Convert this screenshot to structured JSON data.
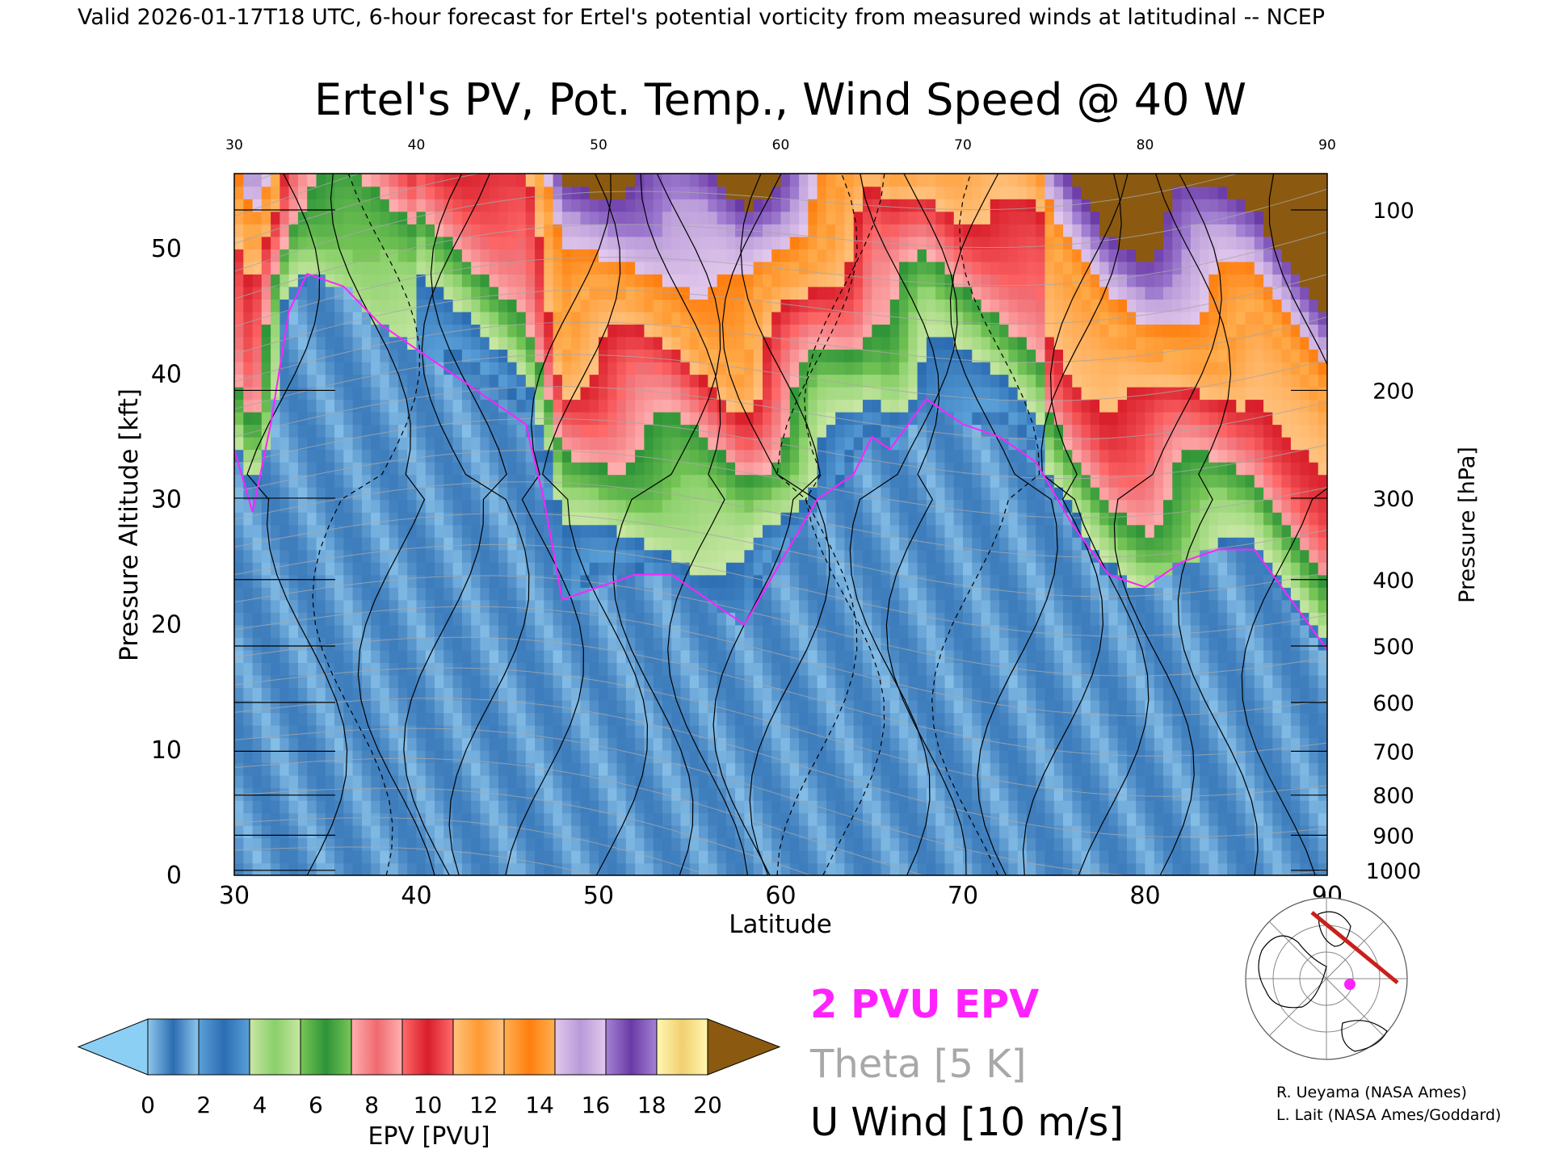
{
  "header": {
    "top_caption": "Valid 2026-01-17T18 UTC, 6-hour forecast for Ertel's potential vorticity from measured winds at latitudinal -- NCEP"
  },
  "chart_data": {
    "type": "heatmap",
    "title": "Ertel's PV, Pot. Temp., Wind Speed @ 40 W",
    "xlabel": "Latitude",
    "ylabel_left": "Pressure Altitude [kft]",
    "ylabel_right": "Pressure [hPa]",
    "xlim": [
      30,
      90
    ],
    "ylim": [
      0,
      56
    ],
    "x_ticks": [
      30,
      40,
      50,
      60,
      70,
      80,
      90
    ],
    "x_ticks_top": [
      30,
      40,
      50,
      60,
      70,
      80,
      90
    ],
    "y_ticks": [
      0,
      10,
      20,
      30,
      40,
      50
    ],
    "pressure_ticks": [
      {
        "hpa": "100",
        "kft": 53.1
      },
      {
        "hpa": "200",
        "kft": 38.7
      },
      {
        "hpa": "300",
        "kft": 30.1
      },
      {
        "hpa": "400",
        "kft": 23.6
      },
      {
        "hpa": "500",
        "kft": 18.3
      },
      {
        "hpa": "600",
        "kft": 13.8
      },
      {
        "hpa": "700",
        "kft": 9.9
      },
      {
        "hpa": "800",
        "kft": 6.4
      },
      {
        "hpa": "900",
        "kft": 3.2
      },
      {
        "hpa": "1000",
        "kft": 0.4
      }
    ],
    "colorbar": {
      "label": "EPV [PVU]",
      "ticks": [
        "0",
        "2",
        "4",
        "6",
        "8",
        "10",
        "12",
        "14",
        "16",
        "18",
        "20"
      ],
      "under_color": "#8ccff5",
      "over_color": "#8b5a10",
      "bins": [
        [
          "#8ec6ec",
          "#2c6db2"
        ],
        [
          "#5aa0d8",
          "#2c6db2"
        ],
        [
          "#c9e7a4",
          "#8ad06a"
        ],
        [
          "#78c657",
          "#2e9437"
        ],
        [
          "#ffb0b0",
          "#f06a70"
        ],
        [
          "#ff6a6a",
          "#d81e2a"
        ],
        [
          "#ffc380",
          "#ff9a32"
        ],
        [
          "#ffb050",
          "#ff7f10"
        ],
        [
          "#e2c8ec",
          "#b89ad8"
        ],
        [
          "#a482d4",
          "#6a3aa6"
        ],
        [
          "#fff7b0",
          "#f0d070"
        ]
      ]
    },
    "fields": {
      "epv_units": "PVU",
      "tropopause_contour_pvu": 2,
      "theta_interval_K": 5,
      "u_wind_interval_ms": 10
    },
    "tropopause_2pvu_kft": [
      {
        "lat": 30,
        "kft": 34
      },
      {
        "lat": 31,
        "kft": 29
      },
      {
        "lat": 32,
        "kft": 36
      },
      {
        "lat": 33,
        "kft": 45
      },
      {
        "lat": 34,
        "kft": 48
      },
      {
        "lat": 36,
        "kft": 47
      },
      {
        "lat": 38,
        "kft": 44
      },
      {
        "lat": 40,
        "kft": 42
      },
      {
        "lat": 42,
        "kft": 40
      },
      {
        "lat": 44,
        "kft": 38
      },
      {
        "lat": 46,
        "kft": 36
      },
      {
        "lat": 47,
        "kft": 30
      },
      {
        "lat": 48,
        "kft": 22
      },
      {
        "lat": 50,
        "kft": 23
      },
      {
        "lat": 52,
        "kft": 24
      },
      {
        "lat": 54,
        "kft": 24
      },
      {
        "lat": 56,
        "kft": 22
      },
      {
        "lat": 58,
        "kft": 20
      },
      {
        "lat": 60,
        "kft": 25
      },
      {
        "lat": 62,
        "kft": 30
      },
      {
        "lat": 64,
        "kft": 32
      },
      {
        "lat": 65,
        "kft": 35
      },
      {
        "lat": 66,
        "kft": 34
      },
      {
        "lat": 68,
        "kft": 38
      },
      {
        "lat": 70,
        "kft": 36
      },
      {
        "lat": 72,
        "kft": 35
      },
      {
        "lat": 74,
        "kft": 33
      },
      {
        "lat": 76,
        "kft": 28
      },
      {
        "lat": 78,
        "kft": 24
      },
      {
        "lat": 80,
        "kft": 23
      },
      {
        "lat": 82,
        "kft": 25
      },
      {
        "lat": 84,
        "kft": 26
      },
      {
        "lat": 86,
        "kft": 26
      },
      {
        "lat": 88,
        "kft": 22
      },
      {
        "lat": 90,
        "kft": 18
      }
    ]
  },
  "legend": {
    "pv_line_label": "2 PVU EPV",
    "pv_line_color": "#ff22ff",
    "theta_label": "Theta [5 K]",
    "theta_color": "#a8a8a8",
    "wind_label": "U Wind [10 m/s]",
    "wind_color": "#000000"
  },
  "inset_map": {
    "marker_color": "#ff22ff",
    "track_color": "#c8201a"
  },
  "credits": {
    "line1": "R. Ueyama (NASA Ames)",
    "line2": "L. Lait (NASA Ames/Goddard)"
  }
}
